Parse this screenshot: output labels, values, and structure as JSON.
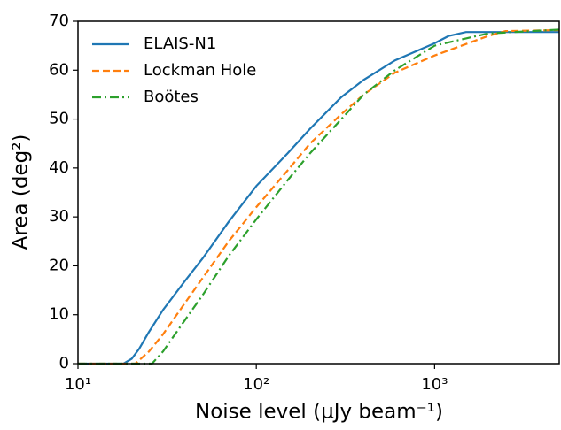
{
  "chart_data": {
    "type": "line",
    "xlabel": "Noise level (μJy beam⁻¹)",
    "ylabel": "Area (deg²)",
    "log_x": true,
    "xlim": [
      10,
      5000
    ],
    "ylim": [
      0,
      70
    ],
    "xticks": [
      {
        "value": 10,
        "label": "10¹"
      },
      {
        "value": 100,
        "label": "10²"
      },
      {
        "value": 1000,
        "label": "10³"
      }
    ],
    "yticks": [
      0,
      10,
      20,
      30,
      40,
      50,
      60,
      70
    ],
    "legend": "upper left",
    "series": [
      {
        "name": "ELAIS-N1",
        "color": "#1f77b4",
        "dash": "solid",
        "x": [
          10,
          18,
          20,
          22,
          25,
          30,
          40,
          50,
          70,
          100,
          150,
          200,
          300,
          400,
          600,
          1000,
          1200,
          1500,
          5000
        ],
        "values": [
          0,
          0,
          1,
          3,
          6.5,
          11,
          17,
          21.5,
          29,
          36.3,
          43,
          48,
          54.5,
          58,
          62,
          65.5,
          67,
          67.8,
          67.8
        ]
      },
      {
        "name": "Lockman Hole",
        "color": "#ff7f0e",
        "dash": "dashed",
        "x": [
          10,
          21,
          25,
          30,
          40,
          50,
          70,
          100,
          150,
          200,
          300,
          400,
          600,
          1000,
          2000,
          2500,
          5000
        ],
        "values": [
          0,
          0,
          2.5,
          6,
          12.5,
          17.5,
          25,
          32,
          39.5,
          45,
          51,
          55,
          59.5,
          63,
          67,
          68,
          68.2
        ]
      },
      {
        "name": "Boötes",
        "color": "#2ca02c",
        "dash": "dashdot",
        "x": [
          10,
          26,
          30,
          40,
          50,
          70,
          100,
          150,
          200,
          300,
          400,
          600,
          1000,
          1500,
          2000,
          5000
        ],
        "values": [
          0,
          0,
          2.5,
          9,
          14,
          22,
          29.5,
          37.5,
          43,
          50,
          55,
          60,
          65,
          66.5,
          67.5,
          68.3
        ]
      }
    ]
  }
}
